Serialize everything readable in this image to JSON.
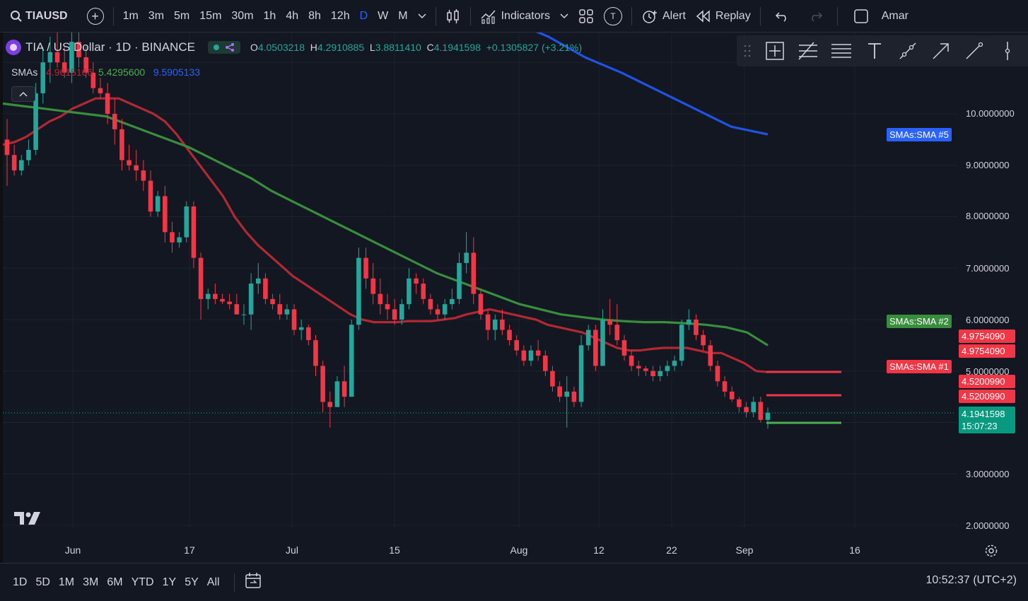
{
  "toolbar": {
    "symbol": "TIAUSD",
    "intervals": [
      "1m",
      "3m",
      "5m",
      "15m",
      "30m",
      "1h",
      "4h",
      "8h",
      "12h",
      "D",
      "W",
      "M"
    ],
    "active_interval": "D",
    "indicators_label": "Indicators",
    "template_badge": "T",
    "alert_label": "Alert",
    "replay_label": "Replay",
    "account_label": "Amar"
  },
  "legend": {
    "title": "TIA / US Dollar · 1D · BINANCE",
    "ohlc": {
      "o_label": "O",
      "o": "4.0503218",
      "h_label": "H",
      "h": "4.2910885",
      "l_label": "L",
      "l": "3.8811410",
      "c_label": "C",
      "c": "4.1941598",
      "change": "+0.1305827 (+3.21%)"
    },
    "smas_label": "SMAs",
    "sma_values": [
      "4.9615166",
      "5.4295600",
      "9.5905133"
    ],
    "collapse_icon": "chevron-up-icon"
  },
  "price_axis": [
    "10.0000000",
    "9.0000000",
    "8.0000000",
    "7.0000000",
    "6.0000000",
    "5.0000000",
    "3.0000000",
    "2.0000000"
  ],
  "tags": {
    "sma5_label": "SMAs:SMA #5",
    "sma2_label": "SMAs:SMA #2",
    "sma1_label": "SMAs:SMA #1",
    "sma2_value_a": "4.9754090",
    "sma2_value_b": "4.9754090",
    "sma1_value_a": "4.5200990",
    "sma1_value_b": "4.5200990",
    "last_price": "4.1941598",
    "countdown": "15:07:23"
  },
  "time_axis": [
    "Jun",
    "17",
    "Jul",
    "15",
    "Aug",
    "12",
    "22",
    "Sep",
    "16"
  ],
  "bottom": {
    "ranges": [
      "1D",
      "5D",
      "1M",
      "3M",
      "6M",
      "YTD",
      "1Y",
      "5Y",
      "All"
    ],
    "clock": "10:52:37 (UTC+2)"
  },
  "colors": {
    "up": "#26a69a",
    "down": "#f23645",
    "sma_red": "#b22833",
    "sma_green": "#388e3c",
    "sma_blue": "#1e53e5",
    "background": "#131722",
    "accent": "#2962ff"
  },
  "chart_data": {
    "type": "candlestick",
    "symbol": "TIA / US Dollar",
    "timeframe": "1D",
    "exchange": "BINANCE",
    "x_ticks": [
      "Jun",
      "17",
      "Jul",
      "15",
      "Aug",
      "12",
      "22",
      "Sep",
      "16"
    ],
    "ylim": [
      1.6,
      11.5
    ],
    "y_ticks": [
      2,
      3,
      5,
      6,
      7,
      8,
      9,
      10
    ],
    "candles": [
      {
        "o": 9.5,
        "h": 9.9,
        "l": 8.6,
        "c": 9.2
      },
      {
        "o": 9.2,
        "h": 9.4,
        "l": 8.8,
        "c": 8.9
      },
      {
        "o": 8.9,
        "h": 9.2,
        "l": 8.8,
        "c": 9.1
      },
      {
        "o": 9.1,
        "h": 9.5,
        "l": 9.0,
        "c": 9.3
      },
      {
        "o": 9.3,
        "h": 10.6,
        "l": 9.2,
        "c": 10.4
      },
      {
        "o": 10.4,
        "h": 11.3,
        "l": 10.2,
        "c": 11.0
      },
      {
        "o": 11.0,
        "h": 11.5,
        "l": 10.6,
        "c": 11.2
      },
      {
        "o": 11.2,
        "h": 11.6,
        "l": 10.9,
        "c": 11.0
      },
      {
        "o": 11.0,
        "h": 11.3,
        "l": 10.7,
        "c": 10.8
      },
      {
        "o": 10.8,
        "h": 11.6,
        "l": 10.6,
        "c": 11.4
      },
      {
        "o": 11.4,
        "h": 11.6,
        "l": 10.9,
        "c": 11.1
      },
      {
        "o": 11.1,
        "h": 11.3,
        "l": 10.7,
        "c": 10.8
      },
      {
        "o": 10.8,
        "h": 11.0,
        "l": 10.4,
        "c": 10.5
      },
      {
        "o": 10.5,
        "h": 10.7,
        "l": 10.3,
        "c": 10.4
      },
      {
        "o": 10.4,
        "h": 10.6,
        "l": 9.8,
        "c": 10.0
      },
      {
        "o": 10.0,
        "h": 10.3,
        "l": 9.4,
        "c": 9.7
      },
      {
        "o": 9.7,
        "h": 9.9,
        "l": 8.9,
        "c": 9.1
      },
      {
        "o": 9.1,
        "h": 9.4,
        "l": 8.9,
        "c": 9.0
      },
      {
        "o": 9.0,
        "h": 9.3,
        "l": 8.7,
        "c": 8.9
      },
      {
        "o": 8.9,
        "h": 9.1,
        "l": 8.5,
        "c": 8.7
      },
      {
        "o": 8.7,
        "h": 8.9,
        "l": 8.0,
        "c": 8.1
      },
      {
        "o": 8.1,
        "h": 8.5,
        "l": 8.0,
        "c": 8.4
      },
      {
        "o": 8.4,
        "h": 8.6,
        "l": 7.5,
        "c": 7.7
      },
      {
        "o": 7.7,
        "h": 7.9,
        "l": 7.3,
        "c": 7.5
      },
      {
        "o": 7.5,
        "h": 7.7,
        "l": 7.4,
        "c": 7.6
      },
      {
        "o": 7.6,
        "h": 8.3,
        "l": 7.5,
        "c": 8.2
      },
      {
        "o": 8.2,
        "h": 8.3,
        "l": 7.0,
        "c": 7.2
      },
      {
        "o": 7.2,
        "h": 7.3,
        "l": 6.0,
        "c": 6.4
      },
      {
        "o": 6.4,
        "h": 6.6,
        "l": 6.2,
        "c": 6.5
      },
      {
        "o": 6.5,
        "h": 6.7,
        "l": 6.3,
        "c": 6.4
      },
      {
        "o": 6.4,
        "h": 6.5,
        "l": 6.3,
        "c": 6.35
      },
      {
        "o": 6.35,
        "h": 6.5,
        "l": 6.2,
        "c": 6.3
      },
      {
        "o": 6.3,
        "h": 6.5,
        "l": 6.1,
        "c": 6.1
      },
      {
        "o": 6.1,
        "h": 6.3,
        "l": 5.9,
        "c": 6.1
      },
      {
        "o": 6.1,
        "h": 6.9,
        "l": 5.8,
        "c": 6.7
      },
      {
        "o": 6.7,
        "h": 7.1,
        "l": 6.5,
        "c": 6.8
      },
      {
        "o": 6.8,
        "h": 6.9,
        "l": 6.3,
        "c": 6.4
      },
      {
        "o": 6.4,
        "h": 6.5,
        "l": 6.2,
        "c": 6.3
      },
      {
        "o": 6.3,
        "h": 6.5,
        "l": 6.0,
        "c": 6.1
      },
      {
        "o": 6.1,
        "h": 6.3,
        "l": 6.0,
        "c": 6.2
      },
      {
        "o": 6.2,
        "h": 6.3,
        "l": 5.7,
        "c": 5.8
      },
      {
        "o": 5.8,
        "h": 6.0,
        "l": 5.6,
        "c": 5.85
      },
      {
        "o": 5.85,
        "h": 5.9,
        "l": 5.5,
        "c": 5.6
      },
      {
        "o": 5.6,
        "h": 5.7,
        "l": 4.9,
        "c": 5.1
      },
      {
        "o": 5.1,
        "h": 5.2,
        "l": 4.2,
        "c": 4.4
      },
      {
        "o": 4.4,
        "h": 4.6,
        "l": 3.9,
        "c": 4.3
      },
      {
        "o": 4.3,
        "h": 4.9,
        "l": 4.3,
        "c": 4.8
      },
      {
        "o": 4.8,
        "h": 5.1,
        "l": 4.3,
        "c": 4.5
      },
      {
        "o": 4.5,
        "h": 6.0,
        "l": 4.5,
        "c": 5.9
      },
      {
        "o": 5.9,
        "h": 7.4,
        "l": 5.8,
        "c": 7.2
      },
      {
        "o": 7.2,
        "h": 7.4,
        "l": 6.6,
        "c": 6.8
      },
      {
        "o": 6.8,
        "h": 7.1,
        "l": 6.3,
        "c": 6.5
      },
      {
        "o": 6.5,
        "h": 6.8,
        "l": 6.1,
        "c": 6.3
      },
      {
        "o": 6.3,
        "h": 6.5,
        "l": 6.0,
        "c": 6.2
      },
      {
        "o": 6.2,
        "h": 6.4,
        "l": 5.9,
        "c": 6.0
      },
      {
        "o": 6.0,
        "h": 6.4,
        "l": 5.9,
        "c": 6.3
      },
      {
        "o": 6.3,
        "h": 7.0,
        "l": 6.2,
        "c": 6.8
      },
      {
        "o": 6.8,
        "h": 6.9,
        "l": 6.5,
        "c": 6.7
      },
      {
        "o": 6.7,
        "h": 6.8,
        "l": 6.3,
        "c": 6.4
      },
      {
        "o": 6.4,
        "h": 6.5,
        "l": 6.1,
        "c": 6.2
      },
      {
        "o": 6.2,
        "h": 6.3,
        "l": 6.0,
        "c": 6.1
      },
      {
        "o": 6.1,
        "h": 6.4,
        "l": 6.0,
        "c": 6.3
      },
      {
        "o": 6.3,
        "h": 6.6,
        "l": 6.2,
        "c": 6.4
      },
      {
        "o": 6.4,
        "h": 7.3,
        "l": 6.3,
        "c": 7.1
      },
      {
        "o": 7.1,
        "h": 7.7,
        "l": 6.9,
        "c": 7.3
      },
      {
        "o": 7.3,
        "h": 7.6,
        "l": 6.3,
        "c": 6.5
      },
      {
        "o": 6.5,
        "h": 6.6,
        "l": 6.0,
        "c": 6.1
      },
      {
        "o": 6.1,
        "h": 6.2,
        "l": 5.6,
        "c": 5.8
      },
      {
        "o": 5.8,
        "h": 6.1,
        "l": 5.6,
        "c": 6.0
      },
      {
        "o": 6.0,
        "h": 6.2,
        "l": 5.7,
        "c": 5.8
      },
      {
        "o": 5.8,
        "h": 5.9,
        "l": 5.5,
        "c": 5.6
      },
      {
        "o": 5.6,
        "h": 5.7,
        "l": 5.3,
        "c": 5.4
      },
      {
        "o": 5.4,
        "h": 5.5,
        "l": 5.1,
        "c": 5.2
      },
      {
        "o": 5.2,
        "h": 5.5,
        "l": 5.1,
        "c": 5.4
      },
      {
        "o": 5.4,
        "h": 5.6,
        "l": 5.2,
        "c": 5.3
      },
      {
        "o": 5.3,
        "h": 5.4,
        "l": 4.9,
        "c": 5.0
      },
      {
        "o": 5.0,
        "h": 5.1,
        "l": 4.6,
        "c": 4.7
      },
      {
        "o": 4.7,
        "h": 4.8,
        "l": 4.4,
        "c": 4.5
      },
      {
        "o": 4.5,
        "h": 4.9,
        "l": 3.9,
        "c": 4.6
      },
      {
        "o": 4.6,
        "h": 4.7,
        "l": 4.3,
        "c": 4.4
      },
      {
        "o": 4.4,
        "h": 5.7,
        "l": 4.3,
        "c": 5.5
      },
      {
        "o": 5.5,
        "h": 5.9,
        "l": 5.4,
        "c": 5.8
      },
      {
        "o": 5.8,
        "h": 5.9,
        "l": 5.0,
        "c": 5.1
      },
      {
        "o": 5.1,
        "h": 6.2,
        "l": 5.1,
        "c": 6.0
      },
      {
        "o": 6.0,
        "h": 6.4,
        "l": 5.7,
        "c": 5.9
      },
      {
        "o": 5.9,
        "h": 6.3,
        "l": 5.5,
        "c": 5.6
      },
      {
        "o": 5.6,
        "h": 5.7,
        "l": 5.2,
        "c": 5.3
      },
      {
        "o": 5.3,
        "h": 5.4,
        "l": 5.0,
        "c": 5.1
      },
      {
        "o": 5.1,
        "h": 5.2,
        "l": 4.9,
        "c": 5.05
      },
      {
        "o": 5.05,
        "h": 5.1,
        "l": 4.9,
        "c": 5.0
      },
      {
        "o": 5.0,
        "h": 5.1,
        "l": 4.8,
        "c": 4.9
      },
      {
        "o": 4.9,
        "h": 5.1,
        "l": 4.8,
        "c": 5.0
      },
      {
        "o": 5.0,
        "h": 5.2,
        "l": 4.9,
        "c": 5.1
      },
      {
        "o": 5.1,
        "h": 5.3,
        "l": 5.0,
        "c": 5.2
      },
      {
        "o": 5.2,
        "h": 6.0,
        "l": 5.1,
        "c": 5.9
      },
      {
        "o": 5.9,
        "h": 6.2,
        "l": 5.8,
        "c": 6.0
      },
      {
        "o": 6.0,
        "h": 6.1,
        "l": 5.6,
        "c": 5.7
      },
      {
        "o": 5.7,
        "h": 5.8,
        "l": 5.4,
        "c": 5.5
      },
      {
        "o": 5.5,
        "h": 5.6,
        "l": 5.0,
        "c": 5.1
      },
      {
        "o": 5.1,
        "h": 5.2,
        "l": 4.7,
        "c": 4.8
      },
      {
        "o": 4.8,
        "h": 4.9,
        "l": 4.5,
        "c": 4.6
      },
      {
        "o": 4.6,
        "h": 4.7,
        "l": 4.4,
        "c": 4.45
      },
      {
        "o": 4.45,
        "h": 4.5,
        "l": 4.2,
        "c": 4.3
      },
      {
        "o": 4.3,
        "h": 4.4,
        "l": 4.1,
        "c": 4.2
      },
      {
        "o": 4.2,
        "h": 4.5,
        "l": 4.1,
        "c": 4.4
      },
      {
        "o": 4.4,
        "h": 4.5,
        "l": 4.0,
        "c": 4.05
      },
      {
        "o": 4.05,
        "h": 4.29,
        "l": 3.88,
        "c": 4.19
      }
    ],
    "sma_red": [
      9.4,
      9.45,
      9.55,
      9.7,
      9.85,
      9.95,
      10.1,
      10.2,
      10.3,
      10.3,
      10.3,
      10.2,
      10.1,
      10.0,
      9.85,
      9.6,
      9.3,
      9.0,
      8.7,
      8.4,
      8.0,
      7.7,
      7.45,
      7.25,
      7.05,
      6.85,
      6.7,
      6.55,
      6.4,
      6.25,
      6.1,
      6.0,
      5.95,
      5.95,
      5.95,
      5.97,
      5.97,
      5.97,
      6.0,
      6.03,
      6.1,
      6.15,
      6.2,
      6.15,
      6.1,
      6.05,
      6.0,
      5.9,
      5.85,
      5.8,
      5.75,
      5.65,
      5.55,
      5.45,
      5.4,
      5.4,
      5.43,
      5.45,
      5.45,
      5.45,
      5.4,
      5.35,
      5.35,
      5.25,
      5.15,
      5.0,
      4.98
    ],
    "sma_green": [
      10.2,
      10.15,
      10.1,
      10.05,
      10.0,
      9.95,
      9.8,
      9.65,
      9.5,
      9.35,
      9.15,
      8.95,
      8.75,
      8.5,
      8.3,
      8.1,
      7.9,
      7.7,
      7.5,
      7.3,
      7.1,
      6.9,
      6.75,
      6.6,
      6.45,
      6.3,
      6.2,
      6.1,
      6.05,
      6.0,
      5.97,
      5.95,
      5.95,
      5.93,
      5.9,
      5.85,
      5.75,
      5.5
    ],
    "sma_blue": [
      11.8,
      11.5,
      11.1,
      10.8,
      10.45,
      10.1,
      9.75,
      9.6
    ]
  }
}
